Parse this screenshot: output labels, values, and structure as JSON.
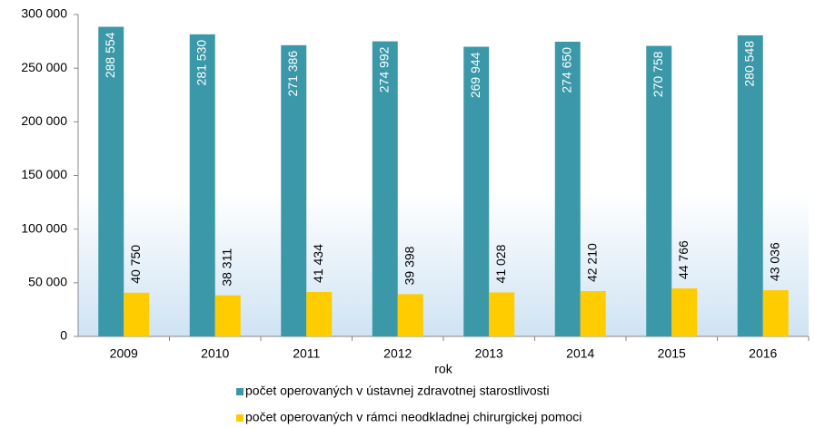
{
  "chart_data": {
    "type": "bar",
    "x_label": "rok",
    "categories": [
      "2009",
      "2010",
      "2011",
      "2012",
      "2013",
      "2014",
      "2015",
      "2016"
    ],
    "series": [
      {
        "name": "počet operovaných v ústavnej zdravotnej starostlivosti",
        "color": "#3b98a9",
        "values": [
          288554,
          281530,
          271386,
          274992,
          269944,
          274650,
          270758,
          280548
        ],
        "value_labels": [
          "288 554",
          "281 530",
          "271 386",
          "274 992",
          "269 944",
          "274 650",
          "270 758",
          "280 548"
        ]
      },
      {
        "name": "počet operovaných v rámci neodkladnej chirurgickej pomoci",
        "color": "#ffcc00",
        "values": [
          40750,
          38311,
          41434,
          39398,
          41028,
          42210,
          44766,
          43036
        ],
        "value_labels": [
          "40 750",
          "38 311",
          "41 434",
          "39 398",
          "41 028",
          "42 210",
          "44 766",
          "43 036"
        ]
      }
    ],
    "ylim": [
      0,
      300000
    ],
    "yticks": [
      {
        "value": 0,
        "label": "0"
      },
      {
        "value": 50000,
        "label": "50 000"
      },
      {
        "value": 100000,
        "label": "100 000"
      },
      {
        "value": 150000,
        "label": "150 000"
      },
      {
        "value": 200000,
        "label": "200 000"
      },
      {
        "value": 250000,
        "label": "250 000"
      },
      {
        "value": 300000,
        "label": "300 000"
      }
    ],
    "legend": "bottom"
  }
}
